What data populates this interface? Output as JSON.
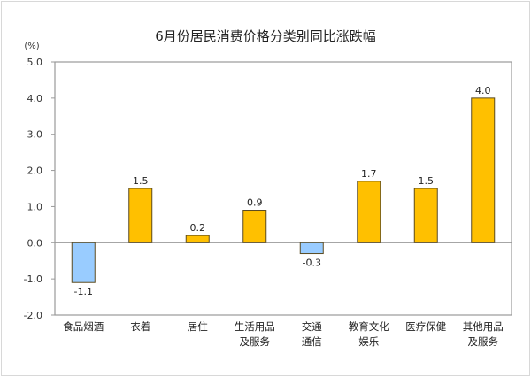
{
  "chart_data": {
    "type": "bar",
    "title": "6月份居民消费价格分类别同比涨跌幅",
    "ylabel": "(%)",
    "xlabel": "",
    "ylim": [
      -2.0,
      5.0
    ],
    "yticks": [
      "5.0",
      "4.0",
      "3.0",
      "2.0",
      "1.0",
      "0.0",
      "-1.0",
      "-2.0"
    ],
    "categories": [
      [
        "食品烟酒"
      ],
      [
        "衣着"
      ],
      [
        "居住"
      ],
      [
        "生活用品",
        "及服务"
      ],
      [
        "交通",
        "通信"
      ],
      [
        "教育文化",
        "娱乐"
      ],
      [
        "医疗保健"
      ],
      [
        "其他用品",
        "及服务"
      ]
    ],
    "values": [
      -1.1,
      1.5,
      0.2,
      0.9,
      -0.3,
      1.7,
      1.5,
      4.0
    ],
    "data_labels": [
      "-1.1",
      "1.5",
      "0.2",
      "0.9",
      "-0.3",
      "1.7",
      "1.5",
      "4.0"
    ],
    "grid": false,
    "colors": {
      "positive": "#FFC000",
      "negative": "#99CCFF",
      "bar_border": "#5a4a20",
      "axis": "#999999"
    }
  }
}
